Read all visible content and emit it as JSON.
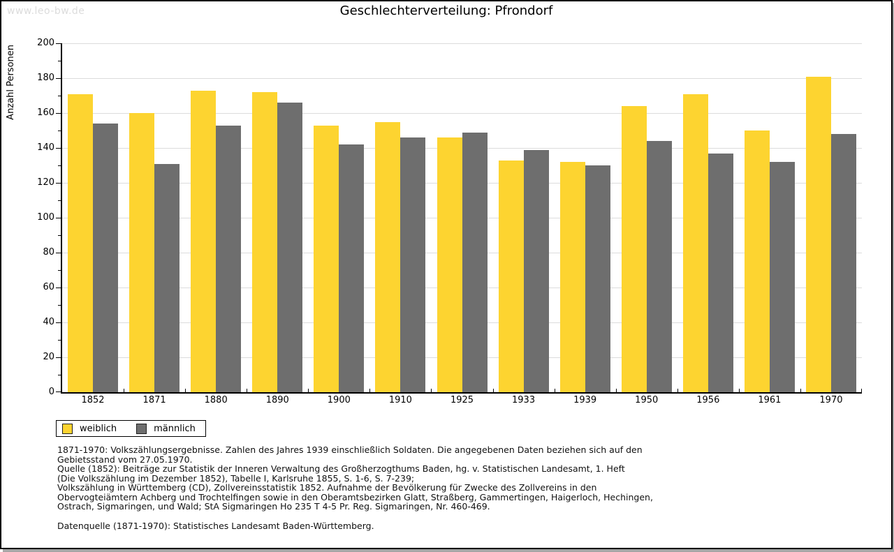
{
  "watermark": "www.leo-bw.de",
  "title": "Geschlechterverteilung: Pfrondorf",
  "chart_data": {
    "type": "bar",
    "title": "Geschlechterverteilung: Pfrondorf",
    "xlabel": "",
    "ylabel": "Anzahl Personen",
    "ylim": [
      0,
      200
    ],
    "ytick_step": 20,
    "ytick_minor_step": 10,
    "grid": true,
    "legend_position": "bottom-left",
    "categories": [
      "1852",
      "1871",
      "1880",
      "1890",
      "1900",
      "1910",
      "1925",
      "1933",
      "1939",
      "1950",
      "1956",
      "1961",
      "1970"
    ],
    "series": [
      {
        "name": "weiblich",
        "color": "#FDD430",
        "values": [
          171,
          160,
          173,
          172,
          153,
          155,
          146,
          133,
          132,
          164,
          171,
          150,
          181
        ]
      },
      {
        "name": "männlich",
        "color": "#6E6E6E",
        "values": [
          154,
          131,
          153,
          166,
          142,
          146,
          149,
          139,
          130,
          144,
          137,
          132,
          148
        ]
      }
    ]
  },
  "colors": {
    "gridline": "#dcdcdc",
    "axis": "#000000",
    "watermark": "#dcdcdc"
  },
  "footnotes": {
    "source_lines": [
      "1871-1970: Volkszählungsergebnisse. Zahlen des Jahres 1939 einschließlich Soldaten. Die angegebenen Daten beziehen sich auf den",
      "Gebietsstand vom 27.05.1970.",
      "Quelle (1852): Beiträge zur Statistik der Inneren Verwaltung des Großherzogthums Baden, hg. v. Statistischen Landesamt, 1. Heft",
      "(Die Volkszählung im Dezember 1852), Tabelle I, Karlsruhe 1855, S. 1-6, S. 7-239;",
      "Volkszählung in Württemberg (CD), Zollvereinsstatistik 1852. Aufnahme der Bevölkerung für Zwecke des Zollvereins in den",
      "Obervogteiämtern Achberg und Trochtelfingen sowie in den Oberamtsbezirken Glatt, Straßberg, Gammertingen, Haigerloch, Hechingen,",
      "Ostrach, Sigmaringen, und Wald; StA Sigmaringen Ho 235 T 4-5 Pr. Reg. Sigmaringen, Nr. 460-469."
    ],
    "datasource": "Datenquelle (1871-1970): Statistisches Landesamt Baden-Württemberg."
  }
}
